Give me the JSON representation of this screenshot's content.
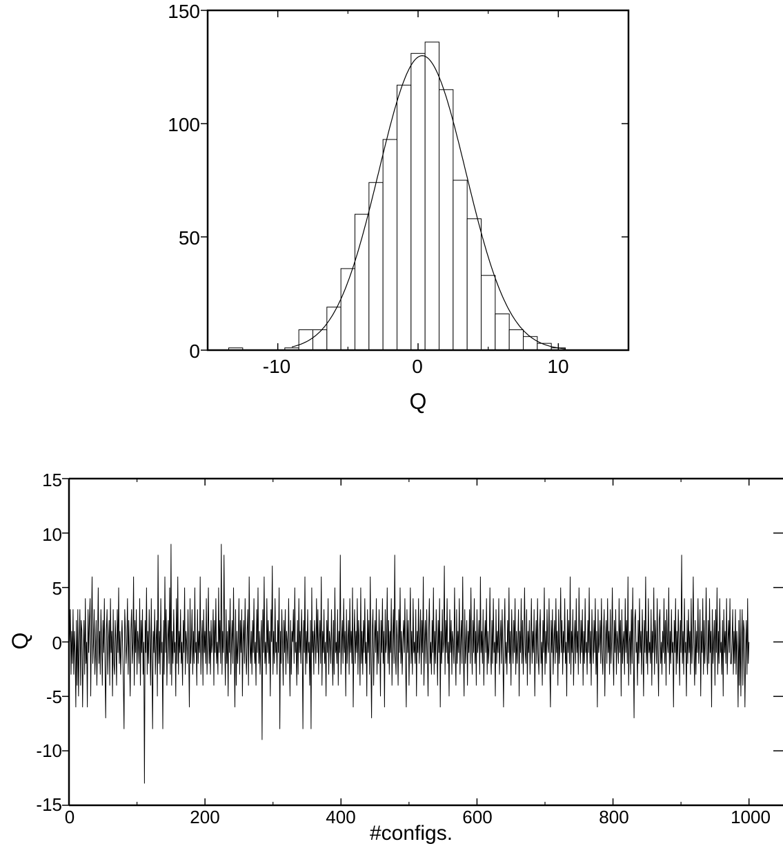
{
  "chart_data": [
    {
      "type": "bar",
      "title": "",
      "xlabel": "Q",
      "ylabel": "",
      "xlim": [
        -15,
        15
      ],
      "ylim": [
        0,
        150
      ],
      "xticks": [
        -10,
        0,
        10
      ],
      "yticks": [
        0,
        50,
        100,
        150
      ],
      "x_tick_labels": [
        "-10",
        "0",
        "10"
      ],
      "y_tick_labels": [
        "0",
        "50",
        "100",
        "150"
      ],
      "bin_width": 1,
      "bins": [
        {
          "q": -13,
          "count": 1
        },
        {
          "q": -9,
          "count": 1
        },
        {
          "q": -8,
          "count": 9
        },
        {
          "q": -7,
          "count": 9
        },
        {
          "q": -6,
          "count": 19
        },
        {
          "q": -5,
          "count": 36
        },
        {
          "q": -4,
          "count": 60
        },
        {
          "q": -3,
          "count": 74
        },
        {
          "q": -2,
          "count": 93
        },
        {
          "q": -1,
          "count": 117
        },
        {
          "q": 0,
          "count": 131
        },
        {
          "q": 1,
          "count": 136
        },
        {
          "q": 2,
          "count": 115
        },
        {
          "q": 3,
          "count": 75
        },
        {
          "q": 4,
          "count": 58
        },
        {
          "q": 5,
          "count": 33
        },
        {
          "q": 6,
          "count": 16
        },
        {
          "q": 7,
          "count": 9
        },
        {
          "q": 8,
          "count": 6
        },
        {
          "q": 9,
          "count": 3
        },
        {
          "q": 10,
          "count": 1
        }
      ],
      "fit": {
        "type": "gaussian",
        "amplitude": 130,
        "mean": 0.3,
        "sigma": 3.1
      },
      "grid": false,
      "legend": "none"
    },
    {
      "type": "line",
      "title": "",
      "xlabel": "#configs.",
      "ylabel": "Q",
      "xlim": [
        0,
        1050
      ],
      "ylim": [
        -15,
        15
      ],
      "xticks": [
        0,
        200,
        400,
        600,
        800,
        1000
      ],
      "yticks": [
        -15,
        -10,
        -5,
        0,
        5,
        10,
        15
      ],
      "x_tick_labels": [
        "0",
        "200",
        "400",
        "600",
        "800",
        "1000"
      ],
      "y_tick_labels": [
        "-15",
        "-10",
        "-5",
        "0",
        "5",
        "10",
        "15"
      ],
      "n_configs": 1000,
      "series": [
        {
          "values": [
            0,
            3,
            -3,
            1,
            -2,
            3,
            -3,
            1,
            -1,
            -6,
            2,
            -4,
            3,
            -5,
            0,
            3,
            -4,
            2,
            1,
            -6,
            -1,
            2,
            -3,
            4,
            -2,
            0,
            -6,
            3,
            -1,
            2,
            4,
            -5,
            1,
            6,
            -2,
            0,
            3,
            -3,
            -1,
            2,
            -4,
            0,
            5,
            -2,
            1,
            -3,
            3,
            0,
            -4,
            2,
            -1,
            4,
            -2,
            -7,
            1,
            3,
            -3,
            0,
            2,
            -4,
            4,
            -1,
            1,
            -5,
            3,
            -2,
            -3,
            2,
            0,
            -4,
            3,
            -1,
            5,
            -2,
            1,
            -3,
            0,
            2,
            -1,
            -4,
            -8,
            3,
            1,
            -2,
            0,
            4,
            -3,
            2,
            -1,
            -5,
            1,
            3,
            -2,
            0,
            6,
            -4,
            2,
            -1,
            3,
            -3,
            1,
            0,
            -2,
            4,
            -4,
            2,
            -1,
            3,
            -3,
            0,
            -13,
            2,
            -1,
            5,
            -3,
            1,
            -2,
            3,
            0,
            -4,
            4,
            -2,
            -8,
            1,
            -1,
            3,
            -3,
            0,
            2,
            -5,
            8,
            -2,
            1,
            -3,
            4,
            -1,
            0,
            -8,
            2,
            -3,
            6,
            -1,
            3,
            -4,
            0,
            2,
            -2,
            5,
            -3,
            9,
            -4,
            1,
            -2,
            3,
            -1,
            0,
            -5,
            4,
            -2,
            6,
            -3,
            1,
            -1,
            3,
            -2,
            0,
            -4,
            2,
            -1,
            5,
            -3,
            1,
            0,
            -2,
            3,
            -1,
            -6,
            4,
            -2,
            0,
            3,
            -3,
            1,
            -2,
            5,
            -1,
            0,
            -4,
            3,
            -2,
            1,
            -1,
            6,
            -3,
            0,
            2,
            -4,
            3,
            -1,
            1,
            -2,
            4,
            -3,
            0,
            5,
            -2,
            1,
            -3,
            2,
            -1,
            0,
            3,
            -4,
            2,
            -1,
            4,
            -2,
            0,
            -3,
            5,
            -1,
            2,
            -2,
            9,
            -3,
            1,
            -1,
            8,
            0,
            -4,
            3,
            -2,
            1,
            -5,
            2,
            -1,
            4,
            -3,
            0,
            2,
            -2,
            5,
            -1,
            -6,
            3,
            -4,
            1,
            -2,
            0,
            4,
            -3,
            2,
            -1,
            3,
            -5,
            0,
            2,
            -2,
            4,
            -1,
            -3,
            1,
            3,
            -4,
            6,
            0,
            -2,
            1,
            -3,
            2,
            -1,
            4,
            -2,
            0,
            -4,
            3,
            -1,
            5,
            -2,
            1,
            -3,
            0,
            2,
            -9,
            3,
            -1,
            6,
            -2,
            0,
            -3,
            4,
            -1,
            2,
            -2,
            1,
            -5,
            3,
            0,
            7,
            -3,
            1,
            -2,
            4,
            -1,
            0,
            -3,
            2,
            -1,
            5,
            -8,
            1,
            -2,
            3,
            0,
            -4,
            2,
            -1,
            3,
            -3,
            1,
            0,
            -2,
            4,
            -1,
            -5,
            2,
            -3,
            1,
            0,
            3,
            -2,
            5,
            -1,
            0,
            -4,
            2,
            -3,
            4,
            -1,
            1,
            -2,
            3,
            0,
            -8,
            2,
            -1,
            6,
            -3,
            1,
            -2,
            3,
            -1,
            0,
            -4,
            2,
            -8,
            5,
            -1,
            1,
            -3,
            2,
            0,
            -2,
            4,
            -1,
            3,
            -3,
            0,
            2,
            -2,
            6,
            -4,
            1,
            -1,
            3,
            -2,
            0,
            -5,
            2,
            -1,
            4,
            -3,
            1,
            0,
            -2,
            3,
            -1,
            -4,
            2,
            -3,
            5,
            -1,
            0,
            -2,
            3,
            -4,
            1,
            -1,
            8,
            -3,
            0,
            2,
            -2,
            4,
            -1,
            1,
            -5,
            3,
            -2,
            0,
            2,
            -3,
            4,
            -1,
            1,
            -2,
            5,
            -6,
            0,
            3,
            -2,
            1,
            -1,
            4,
            -3,
            2,
            0,
            -4,
            5,
            -2,
            1,
            -3,
            2,
            -1,
            4,
            -2,
            0,
            -5,
            3,
            -1,
            2,
            -3,
            6,
            -2,
            -7,
            1,
            3,
            -4,
            0,
            2,
            -1,
            4,
            -3,
            1,
            -2,
            3,
            0,
            -5,
            2,
            -1,
            4,
            -2,
            1,
            -6,
            3,
            -1,
            0,
            5,
            -2,
            2,
            -3,
            1,
            -1,
            4,
            -4,
            0,
            3,
            -2,
            8,
            -1,
            -3,
            2,
            0,
            -4,
            3,
            -1,
            5,
            -2,
            1,
            -3,
            0,
            2,
            -1,
            4,
            -2,
            -6,
            3,
            -1,
            2,
            -4,
            0,
            5,
            -2,
            1,
            -3,
            4,
            -1,
            0,
            -2,
            3,
            -5,
            1,
            -1,
            4,
            -2,
            0,
            3,
            -3,
            2,
            -1,
            6,
            -4,
            0,
            2,
            -2,
            3,
            -1,
            -5,
            1,
            4,
            -2,
            0,
            -3,
            2,
            -1,
            5,
            -3,
            1,
            -2,
            3,
            0,
            -4,
            2,
            -1,
            4,
            -6,
            1,
            -2,
            3,
            -1,
            0,
            7,
            -3,
            2,
            -1,
            4,
            -2,
            0,
            -5,
            3,
            -1,
            2,
            -3,
            1,
            0,
            -2,
            5,
            -1,
            -4,
            3,
            -2,
            1,
            -1,
            4,
            -3,
            0,
            2,
            -2,
            6,
            -1,
            -5,
            3,
            -2,
            0,
            2,
            -4,
            1,
            -1,
            3,
            -2,
            5,
            0,
            -3,
            2,
            -1,
            4,
            -2,
            1,
            -4,
            3,
            -1,
            0,
            2,
            -3,
            6,
            -1,
            1,
            -2,
            3,
            -4,
            0,
            2,
            -1,
            4,
            -3,
            1,
            -2,
            0,
            5,
            -1,
            -3,
            2,
            -2,
            4,
            -1,
            0,
            -5,
            3,
            -2,
            1,
            -1,
            4,
            -3,
            0,
            2,
            -2,
            3,
            -1,
            -6,
            1,
            4,
            -2,
            0,
            -3,
            2,
            -1,
            5,
            -2,
            1,
            -4,
            3,
            0,
            -2,
            2,
            -1,
            4,
            -3,
            1,
            -2,
            0,
            3,
            -5,
            1,
            -1,
            4,
            -2,
            2,
            -3,
            0,
            5,
            -1,
            -2,
            3,
            -4,
            1,
            -1,
            2,
            -3,
            0,
            4,
            -2,
            1,
            -1,
            3,
            -5,
            0,
            2,
            -2,
            4,
            -1,
            -3,
            1,
            3,
            -2,
            0,
            -4,
            2,
            -1,
            5,
            -3,
            1,
            -2,
            3,
            0,
            -1,
            4,
            -2,
            -6,
            2,
            -1,
            3,
            -3,
            0,
            2,
            -2,
            4,
            -1,
            1,
            -4,
            3,
            -2,
            0,
            5,
            -1,
            2,
            -3,
            1,
            -1,
            4,
            -2,
            0,
            -5,
            3,
            -1,
            2,
            -2,
            6,
            -3,
            1,
            -1,
            3,
            -4,
            0,
            2,
            -2,
            4,
            -1,
            1,
            -3,
            5,
            0,
            -2,
            2,
            -1,
            3,
            -4,
            1,
            -2,
            4,
            -1,
            0,
            -3,
            2,
            -1,
            5,
            -2,
            1,
            -4,
            3,
            0,
            -2,
            2,
            -1,
            4,
            -3,
            1,
            -6,
            3,
            -1,
            0,
            2,
            -2,
            4,
            -1,
            -3,
            1,
            3,
            -5,
            0,
            2,
            -2,
            4,
            -1,
            1,
            -3,
            3,
            -2,
            0,
            5,
            -1,
            -4,
            2,
            -1,
            3,
            -3,
            1,
            0,
            -2,
            4,
            -1,
            2,
            -5,
            3,
            -2,
            0,
            1,
            -3,
            4,
            -1,
            2,
            -2,
            6,
            -4,
            0,
            1,
            -3,
            3,
            -2,
            5,
            -1,
            -7,
            2,
            3,
            -1,
            0,
            -4,
            2,
            -2,
            4,
            -1,
            1,
            -3,
            3,
            0,
            -5,
            2,
            -1,
            6,
            -2,
            1,
            -3,
            4,
            -1,
            0,
            -2,
            3,
            -4,
            1,
            -1,
            5,
            -3,
            2,
            0,
            -2,
            4,
            -1,
            -5,
            2,
            3,
            -2,
            0,
            -3,
            1,
            -1,
            4,
            -2,
            2,
            -4,
            3,
            0,
            -1,
            5,
            -3,
            1,
            -2,
            3,
            -1,
            0,
            -6,
            2,
            -1,
            4,
            -3,
            1,
            -2,
            3,
            0,
            -4,
            2,
            -1,
            8,
            -2,
            1,
            -3,
            4,
            -1,
            0,
            -5,
            2,
            -2,
            3,
            -1,
            1,
            -3,
            4,
            -2,
            0,
            6,
            -1,
            -4,
            2,
            -3,
            1,
            -1,
            4,
            -2,
            0,
            3,
            -5,
            1,
            -1,
            4,
            -3,
            2,
            -2,
            0,
            5,
            -1,
            -3,
            2,
            -2,
            4,
            -1,
            1,
            -6,
            3,
            -2,
            0,
            2,
            -4,
            3,
            -1,
            5,
            -3,
            1,
            -2,
            4,
            -1,
            0,
            -3,
            2,
            -5,
            3,
            -1,
            1,
            -2,
            4,
            -3,
            0,
            2,
            -1,
            4,
            -2,
            -2
          ]
        }
      ],
      "grid": false,
      "legend": "none"
    }
  ]
}
